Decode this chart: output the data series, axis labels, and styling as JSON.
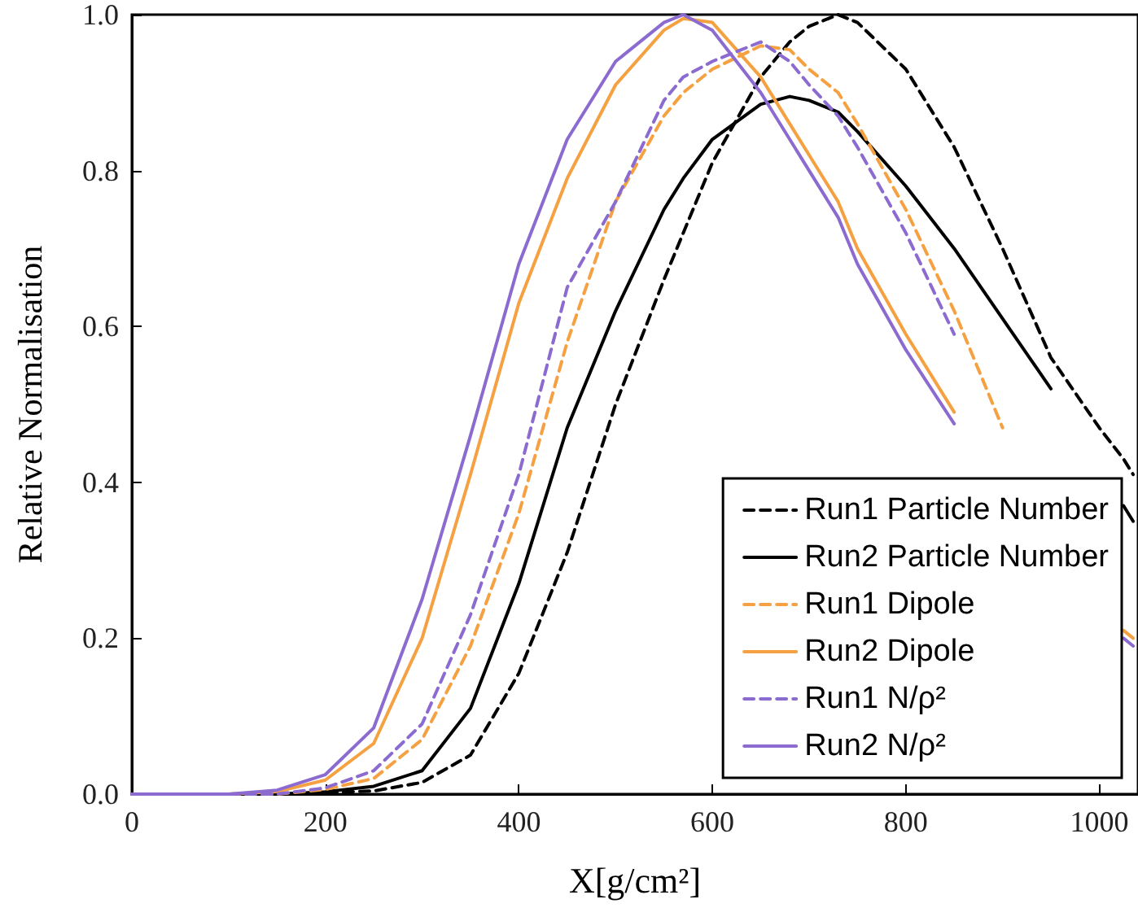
{
  "chart_data": {
    "type": "line",
    "xlabel": "X[g/cm²]",
    "ylabel": "Relative Normalisation",
    "x": [
      0,
      100,
      150,
      200,
      250,
      300,
      350,
      400,
      450,
      500,
      550,
      570,
      600,
      650,
      680,
      700,
      730,
      750,
      800,
      850,
      900,
      950,
      1000,
      1025,
      1035
    ],
    "series": [
      {
        "name": "Run1 Particle Number",
        "color": "#000000",
        "line_style": "dashed",
        "values": [
          0,
          0,
          0,
          0.002,
          0.004,
          0.015,
          0.05,
          0.155,
          0.31,
          0.5,
          0.66,
          0.72,
          0.81,
          0.92,
          0.965,
          0.985,
          1.0,
          0.99,
          0.93,
          0.83,
          0.7,
          0.56,
          0.47,
          0.43,
          0.41
        ]
      },
      {
        "name": "Run2 Particle Number",
        "color": "#000000",
        "line_style": "solid",
        "values": [
          0,
          0,
          0,
          0.003,
          0.01,
          0.03,
          0.11,
          0.27,
          0.47,
          0.62,
          0.75,
          0.79,
          0.84,
          0.885,
          0.895,
          0.89,
          0.875,
          0.85,
          0.78,
          0.7,
          0.61,
          0.52,
          null,
          0.37,
          0.35
        ]
      },
      {
        "name": "Run1 Dipole",
        "color": "#f5a142",
        "line_style": "dashed",
        "values": [
          0,
          0,
          0,
          0.006,
          0.02,
          0.07,
          0.19,
          0.36,
          0.58,
          0.76,
          0.87,
          0.9,
          0.93,
          0.96,
          0.955,
          0.93,
          0.9,
          0.86,
          0.75,
          0.62,
          0.47,
          null,
          null,
          null,
          null
        ]
      },
      {
        "name": "Run2 Dipole",
        "color": "#f5a142",
        "line_style": "solid",
        "values": [
          0,
          0,
          0.003,
          0.018,
          0.065,
          0.2,
          0.41,
          0.63,
          0.79,
          0.91,
          0.98,
          0.995,
          0.99,
          0.92,
          0.86,
          0.82,
          0.76,
          0.7,
          0.59,
          0.49,
          null,
          null,
          null,
          0.21,
          0.2
        ]
      },
      {
        "name": "Run1 N/ρ²",
        "color": "#8c6bd0",
        "line_style": "dashed",
        "values": [
          0,
          0,
          0,
          0.008,
          0.03,
          0.09,
          0.23,
          0.41,
          0.65,
          0.76,
          0.89,
          0.92,
          0.94,
          0.965,
          0.94,
          0.91,
          0.87,
          0.83,
          0.72,
          0.59,
          null,
          null,
          null,
          null,
          null
        ]
      },
      {
        "name": "Run2 N/ρ²",
        "color": "#8c6bd0",
        "line_style": "solid",
        "values": [
          0,
          0,
          0.005,
          0.025,
          0.085,
          0.25,
          0.46,
          0.68,
          0.84,
          0.94,
          0.99,
          1.0,
          0.98,
          0.9,
          0.84,
          0.8,
          0.74,
          0.68,
          0.57,
          0.475,
          null,
          null,
          null,
          0.2,
          0.19
        ]
      }
    ],
    "xlim": [
      0,
      1040
    ],
    "xticks": [
      0,
      200,
      400,
      600,
      800,
      1000
    ],
    "ylim": [
      0,
      1.0
    ],
    "yticks": [
      {
        "value": 0,
        "label": "0.0"
      },
      0.2,
      0.4,
      0.6,
      0.8,
      {
        "value": 1,
        "label": "1.0"
      }
    ],
    "grid": false,
    "legend": "bottom right",
    "marker": "none"
  }
}
